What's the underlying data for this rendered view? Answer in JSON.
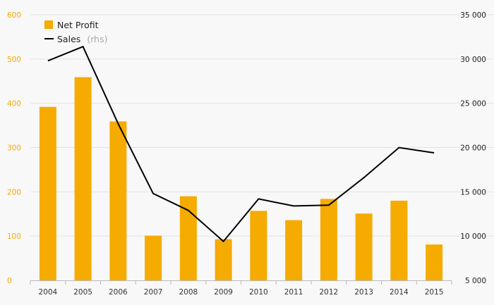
{
  "chart_data": {
    "type": "bar",
    "categories": [
      "2004",
      "2005",
      "2006",
      "2007",
      "2008",
      "2009",
      "2010",
      "2011",
      "2012",
      "2013",
      "2014",
      "2015"
    ],
    "series": [
      {
        "name": "Net Profit",
        "type": "bar",
        "axis": "left",
        "color": "#f5ab00",
        "values": [
          392,
          459,
          359,
          101,
          190,
          93,
          157,
          136,
          184,
          151,
          180,
          81
        ]
      },
      {
        "name": "Sales",
        "name_suffix": "(rhs)",
        "type": "line",
        "axis": "right",
        "color": "#000000",
        "values": [
          29800,
          31400,
          22700,
          14800,
          12900,
          9400,
          14200,
          13400,
          13500,
          16600,
          20000,
          19400
        ]
      }
    ],
    "y_left": {
      "ylim": [
        0,
        600
      ],
      "ticks": [
        0,
        100,
        200,
        300,
        400,
        500,
        600
      ],
      "tick_labels": [
        "0",
        "100",
        "200",
        "300",
        "400",
        "500",
        "600"
      ]
    },
    "y_right": {
      "ylim": [
        5000,
        35000
      ],
      "ticks": [
        5000,
        10000,
        15000,
        20000,
        25000,
        30000,
        35000
      ],
      "tick_labels": [
        "5 000",
        "10 000",
        "15 000",
        "20 000",
        "25 000",
        "30 000",
        "35 000"
      ]
    },
    "grid": true,
    "legend_position": "top-left",
    "title": "",
    "xlabel": "",
    "ylabel": ""
  }
}
